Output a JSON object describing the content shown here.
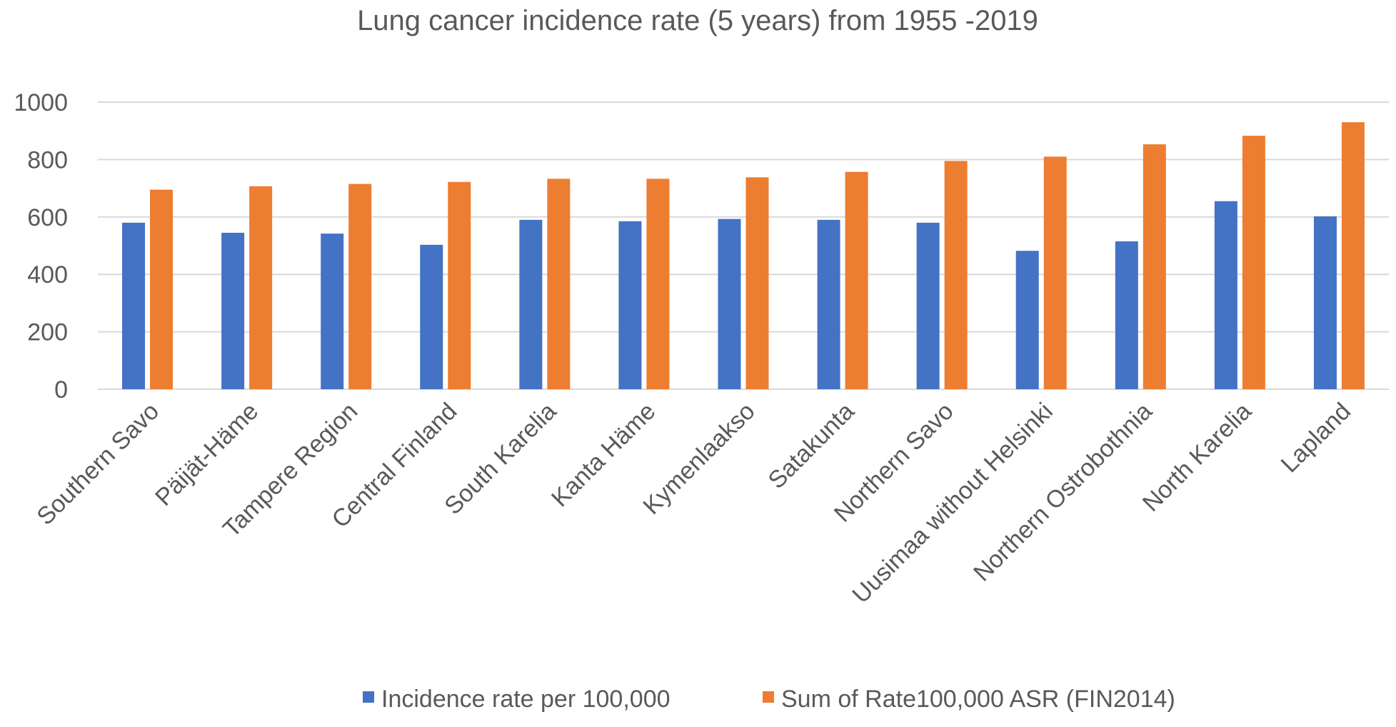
{
  "chart_data": {
    "type": "bar",
    "title": "Lung cancer incidence rate (5 years) from 1955 -2019",
    "xlabel": "",
    "ylabel": "",
    "ylim": [
      0,
      1000
    ],
    "yticks": [
      0,
      200,
      400,
      600,
      800,
      1000
    ],
    "grid": true,
    "legend_position": "bottom",
    "categories": [
      "Southern Savo",
      "Päijät-Häme",
      "Tampere Region",
      "Central Finland",
      "South Karelia",
      "Kanta Häme",
      "Kymenlaakso",
      "Satakunta",
      "Northern Savo",
      "Uusimaa without Helsinki",
      "Northern Ostrobothnia",
      "North Karelia",
      "Lapland"
    ],
    "series": [
      {
        "name": "Incidence rate per 100,000",
        "color": "#4472c4",
        "values": [
          580,
          545,
          542,
          503,
          590,
          585,
          593,
          590,
          580,
          482,
          515,
          655,
          602
        ]
      },
      {
        "name": "Sum of Rate100,000 ASR (FIN2014)",
        "color": "#ed7d31",
        "values": [
          695,
          707,
          715,
          722,
          733,
          733,
          738,
          757,
          795,
          810,
          853,
          883,
          930
        ]
      }
    ]
  }
}
